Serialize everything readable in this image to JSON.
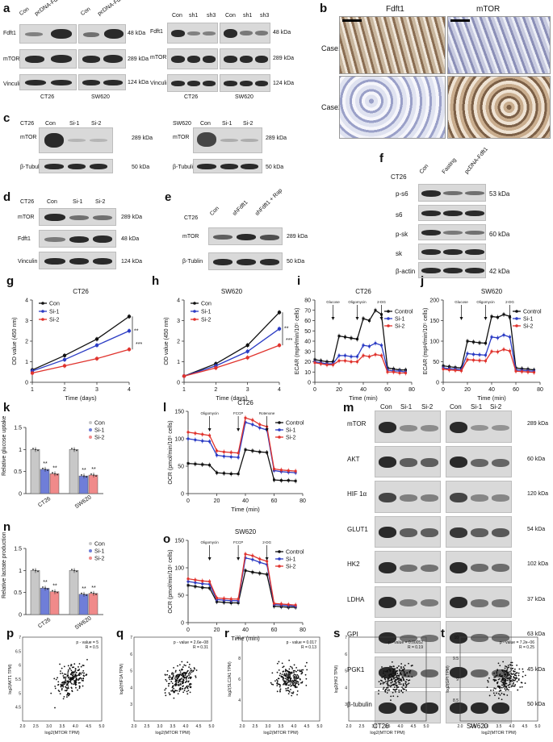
{
  "panels": {
    "a": {
      "letter": "a",
      "left": {
        "lanes": [
          "Con",
          "pcDNA-Fdft1",
          "Con",
          "pcDNA-Fdft1"
        ],
        "cells": [
          "CT26",
          "SW620"
        ],
        "rows": [
          "Fdft1",
          "mTOR",
          "Vinculin"
        ],
        "kda": [
          "48 kDa",
          "289 kDa",
          "124 kDa"
        ]
      },
      "right": {
        "lanes": [
          "Con",
          "sh1",
          "sh3",
          "Con",
          "sh1",
          "sh3"
        ],
        "cells": [
          "CT26",
          "SW620"
        ],
        "rows": [
          "Fdft1",
          "mTOR",
          "Vinculin"
        ],
        "kda": [
          "48 kDa",
          "289 kDa",
          "124 kDa"
        ]
      }
    },
    "b": {
      "letter": "b",
      "cols": [
        "Fdft1",
        "mTOR"
      ],
      "rows": [
        "Case1",
        "Case2"
      ]
    },
    "c": {
      "letter": "c",
      "left": {
        "cell": "CT26",
        "lanes": [
          "Con",
          "Si-1",
          "Si-2"
        ],
        "rows": [
          "mTOR",
          "β-Tubulin"
        ],
        "kda": [
          "289 kDa",
          "50 kDa"
        ]
      },
      "right": {
        "cell": "SW620",
        "lanes": [
          "Con",
          "Si-1",
          "Si-2"
        ],
        "rows": [
          "mTOR",
          "β-Tubulin"
        ],
        "kda": [
          "289 kDa",
          "50 kDa"
        ]
      }
    },
    "d": {
      "letter": "d",
      "cell": "CT26",
      "lanes": [
        "Con",
        "Si-1",
        "Si-2"
      ],
      "rows": [
        "mTOR",
        "Fdft1",
        "Vinculin"
      ],
      "kda": [
        "289 kDa",
        "48 kDa",
        "124 kDa"
      ]
    },
    "e": {
      "letter": "e",
      "cell": "CT26",
      "lanes": [
        "Con",
        "shFdft1",
        "shFdft1 + Rap"
      ],
      "rows": [
        "mTOR",
        "β-Tublin"
      ],
      "kda": [
        "289 kDa",
        "50 kDa"
      ]
    },
    "f": {
      "letter": "f",
      "cell": "CT26",
      "lanes": [
        "Con",
        "Fasting",
        "pcDNA-Fdft1"
      ],
      "rows": [
        "p-s6",
        "s6",
        "p-sk",
        "sk",
        "β-actin"
      ],
      "kda": [
        "53 kDa",
        "",
        "60 kDa",
        "",
        "42 kDa"
      ]
    },
    "m": {
      "letter": "m",
      "lanes": [
        "Con",
        "Si-1",
        "Si-2",
        "Con",
        "Si-1",
        "Si-2"
      ],
      "rows": [
        "mTOR",
        "AKT",
        "HIF 1α",
        "GLUT1",
        "HK2",
        "LDHA",
        "GPI",
        "PGK1",
        "β-tubulin"
      ],
      "kda": [
        "289 kDa",
        "60 kDa",
        "120 kDa",
        "54 kDa",
        "102 kDa",
        "37 kDa",
        "63 kDa",
        "45 kDa",
        "50 kDa"
      ],
      "cells": [
        "CT26",
        "SW620"
      ]
    },
    "k": {
      "letter": "k",
      "ylabel": "Relative glucose uptake"
    },
    "n": {
      "letter": "n",
      "ylabel": "Relative lactate production"
    },
    "scatter": {
      "xlabel": "log2(MTOR TPM)"
    }
  },
  "chart_data": [
    {
      "id": "g",
      "type": "line",
      "title": "CT26",
      "xlabel": "Time (days)",
      "ylabel": "OD value (450 nm)",
      "x": [
        1,
        2,
        3,
        4
      ],
      "xlim": [
        1,
        4
      ],
      "ylim": [
        0,
        4
      ],
      "yticks": [
        0,
        1,
        2,
        3,
        4
      ],
      "legend": "top-left",
      "series": [
        {
          "name": "Con",
          "color": "#111111",
          "values": [
            0.6,
            1.3,
            2.1,
            3.2
          ]
        },
        {
          "name": "Si-1",
          "color": "#2b3cc4",
          "values": [
            0.55,
            1.1,
            1.8,
            2.5
          ]
        },
        {
          "name": "Si-2",
          "color": "#e0332d",
          "values": [
            0.45,
            0.8,
            1.15,
            1.6
          ]
        }
      ],
      "annotations": [
        "**",
        "***"
      ]
    },
    {
      "id": "h",
      "type": "line",
      "title": "SW620",
      "xlabel": "Time (days)",
      "ylabel": "OD value (450 nm)",
      "x": [
        1,
        2,
        3,
        4
      ],
      "xlim": [
        1,
        4
      ],
      "ylim": [
        0,
        4
      ],
      "yticks": [
        0,
        1,
        2,
        3,
        4
      ],
      "legend": "top-left",
      "series": [
        {
          "name": "Con",
          "color": "#111111",
          "values": [
            0.3,
            0.9,
            1.8,
            3.4
          ]
        },
        {
          "name": "Si-1",
          "color": "#2b3cc4",
          "values": [
            0.3,
            0.8,
            1.5,
            2.6
          ]
        },
        {
          "name": "Si-2",
          "color": "#e0332d",
          "values": [
            0.3,
            0.7,
            1.2,
            1.8
          ]
        }
      ],
      "annotations": [
        "**",
        "***"
      ]
    },
    {
      "id": "i",
      "type": "line",
      "title": "CT26",
      "xlabel": "Time (min)",
      "ylabel": "ECAR (mpH/min/10⁵ cells)",
      "x": [
        0,
        5,
        10,
        15,
        20,
        25,
        30,
        35,
        40,
        45,
        50,
        55,
        60,
        65,
        70,
        75
      ],
      "xlim": [
        0,
        80
      ],
      "ylim": [
        0,
        80
      ],
      "yticks": [
        0,
        10,
        20,
        30,
        40,
        50,
        60,
        70,
        80
      ],
      "xticks": [
        0,
        20,
        40,
        60,
        80
      ],
      "legend": "right",
      "series": [
        {
          "name": "Control",
          "color": "#111111",
          "values": [
            22,
            21,
            20,
            20,
            45,
            44,
            43,
            42,
            62,
            60,
            70,
            66,
            14,
            13,
            12,
            12
          ]
        },
        {
          "name": "Si-1",
          "color": "#2b3cc4",
          "values": [
            20,
            19,
            18,
            18,
            26,
            26,
            25,
            25,
            36,
            35,
            38,
            36,
            12,
            11,
            11,
            10
          ]
        },
        {
          "name": "Si-2",
          "color": "#e0332d",
          "values": [
            19,
            18,
            17,
            17,
            21,
            21,
            20,
            20,
            26,
            25,
            27,
            26,
            10,
            10,
            9,
            9
          ]
        }
      ],
      "annotations": [
        "Glucose",
        "Oligomycin",
        "2-DG"
      ]
    },
    {
      "id": "j",
      "type": "line",
      "title": "SW620",
      "xlabel": "Time (min)",
      "ylabel": "ECAR (mpH/min/10⁵ cells)",
      "x": [
        0,
        5,
        10,
        15,
        20,
        25,
        30,
        35,
        40,
        45,
        50,
        55,
        60,
        65,
        70,
        75
      ],
      "xlim": [
        0,
        80
      ],
      "ylim": [
        0,
        200
      ],
      "yticks": [
        0,
        50,
        100,
        150,
        200
      ],
      "xticks": [
        0,
        20,
        40,
        60,
        80
      ],
      "legend": "right",
      "series": [
        {
          "name": "Control",
          "color": "#111111",
          "values": [
            40,
            38,
            36,
            35,
            100,
            98,
            96,
            95,
            160,
            158,
            165,
            160,
            35,
            33,
            32,
            30
          ]
        },
        {
          "name": "Si-1",
          "color": "#2b3cc4",
          "values": [
            35,
            33,
            32,
            31,
            70,
            68,
            67,
            66,
            110,
            108,
            115,
            110,
            30,
            29,
            28,
            27
          ]
        },
        {
          "name": "Si-2",
          "color": "#e0332d",
          "values": [
            32,
            30,
            29,
            28,
            55,
            54,
            53,
            52,
            75,
            74,
            80,
            76,
            27,
            26,
            25,
            24
          ]
        }
      ],
      "annotations": [
        "Glucose",
        "Oligomycin",
        "2-DG"
      ]
    },
    {
      "id": "l",
      "type": "line",
      "title": "CT26",
      "xlabel": "Time (min)",
      "ylabel": "OCR (pmol/min/10⁵ cells)",
      "x": [
        0,
        5,
        10,
        15,
        20,
        25,
        30,
        35,
        40,
        45,
        50,
        55,
        60,
        65,
        70,
        75
      ],
      "xlim": [
        0,
        80
      ],
      "ylim": [
        0,
        150
      ],
      "yticks": [
        0,
        50,
        100,
        150
      ],
      "xticks": [
        0,
        20,
        40,
        60,
        80
      ],
      "legend": "right",
      "series": [
        {
          "name": "Control",
          "color": "#111111",
          "values": [
            55,
            54,
            53,
            52,
            38,
            37,
            36,
            36,
            80,
            78,
            76,
            75,
            25,
            24,
            24,
            23
          ]
        },
        {
          "name": "Si-1",
          "color": "#2b3cc4",
          "values": [
            100,
            98,
            96,
            95,
            70,
            68,
            67,
            66,
            130,
            126,
            120,
            116,
            42,
            40,
            39,
            38
          ]
        },
        {
          "name": "Si-2",
          "color": "#e0332d",
          "values": [
            112,
            110,
            108,
            106,
            78,
            76,
            75,
            74,
            138,
            134,
            126,
            122,
            45,
            43,
            42,
            41
          ]
        }
      ],
      "annotations": [
        "Oligomycin",
        "FCCP",
        "Rotenone"
      ]
    },
    {
      "id": "o",
      "type": "line",
      "title": "SW620",
      "xlabel": "Time (min)",
      "ylabel": "OCR (pmol/min/10⁵ cells)",
      "x": [
        0,
        5,
        10,
        15,
        20,
        25,
        30,
        35,
        40,
        45,
        50,
        55,
        60,
        65,
        70,
        75
      ],
      "xlim": [
        0,
        80
      ],
      "ylim": [
        0,
        150
      ],
      "yticks": [
        0,
        50,
        100,
        150
      ],
      "xticks": [
        0,
        20,
        40,
        60,
        80
      ],
      "legend": "right",
      "series": [
        {
          "name": "Control",
          "color": "#111111",
          "values": [
            68,
            66,
            64,
            63,
            38,
            37,
            36,
            36,
            95,
            92,
            90,
            88,
            30,
            29,
            28,
            28
          ]
        },
        {
          "name": "Si-1",
          "color": "#2b3cc4",
          "values": [
            75,
            73,
            71,
            70,
            42,
            41,
            40,
            40,
            118,
            115,
            110,
            106,
            33,
            32,
            31,
            30
          ]
        },
        {
          "name": "Si-2",
          "color": "#e0332d",
          "values": [
            80,
            78,
            76,
            75,
            45,
            44,
            43,
            43,
            125,
            122,
            116,
            112,
            35,
            34,
            33,
            32
          ]
        }
      ],
      "annotations": [
        "Oligomycin",
        "FCCP",
        "2-DG"
      ]
    },
    {
      "id": "k",
      "type": "bar",
      "categories": [
        "CT26",
        "SW620"
      ],
      "ylabel": "Relative glucose uptake",
      "ylim": [
        0,
        1.5
      ],
      "yticks": [
        0,
        0.5,
        1,
        1.5
      ],
      "legend": "top-right",
      "series": [
        {
          "name": "Con",
          "color": "#c8c8c8",
          "values": [
            1.0,
            1.0
          ]
        },
        {
          "name": "Si-1",
          "color": "#6f7ed8",
          "values": [
            0.55,
            0.4
          ]
        },
        {
          "name": "Si-2",
          "color": "#f08a8a",
          "values": [
            0.45,
            0.42
          ]
        }
      ],
      "annotations": [
        "**",
        "**",
        "**",
        "**"
      ]
    },
    {
      "id": "n",
      "type": "bar",
      "categories": [
        "CT26",
        "SW620"
      ],
      "ylabel": "Relative lactate production",
      "ylim": [
        0,
        1.5
      ],
      "yticks": [
        0,
        0.5,
        1,
        1.5
      ],
      "legend": "top-right",
      "series": [
        {
          "name": "Con",
          "color": "#c8c8c8",
          "values": [
            1.0,
            1.0
          ]
        },
        {
          "name": "Si-1",
          "color": "#6f7ed8",
          "values": [
            0.6,
            0.46
          ]
        },
        {
          "name": "Si-2",
          "color": "#f08a8a",
          "values": [
            0.52,
            0.48
          ]
        }
      ],
      "annotations": [
        "**",
        "**",
        "**",
        "**"
      ]
    },
    {
      "id": "p",
      "type": "scatter",
      "xlabel": "log2(MTOR TPM)",
      "ylabel": "log2(AKT1 TPM)",
      "xlim": [
        2,
        5
      ],
      "ylim": [
        4,
        7
      ],
      "stat": [
        "p - value = 5",
        "R = 0.5"
      ],
      "seed": 11,
      "n": 220,
      "slope": 0.5
    },
    {
      "id": "q",
      "type": "scatter",
      "xlabel": "log2(MTOR TPM)",
      "ylabel": "log2(HIF1A TPM)",
      "xlim": [
        2,
        5
      ],
      "ylim": [
        2,
        7
      ],
      "stat": [
        "p - value = 2.6e−08",
        "R = 0.31"
      ],
      "seed": 23,
      "n": 220,
      "slope": 0.31
    },
    {
      "id": "r",
      "type": "scatter",
      "xlabel": "log2(MTOR TPM)",
      "ylabel": "log2(SLC2A1 TPM)",
      "xlim": [
        2,
        5
      ],
      "ylim": [
        2,
        10
      ],
      "stat": [
        "p - value = 0.017",
        "R = 0.13"
      ],
      "seed": 37,
      "n": 220,
      "slope": 0.13
    },
    {
      "id": "s",
      "type": "scatter",
      "xlabel": "log2(MTOR TPM)",
      "ylabel": "log2(HK2 TPM)",
      "xlim": [
        2,
        5
      ],
      "ylim": [
        2,
        7
      ],
      "stat": [
        "p - value = 0.00052",
        "R = 0.19"
      ],
      "seed": 51,
      "n": 220,
      "slope": 0.19
    },
    {
      "id": "t",
      "type": "scatter",
      "xlabel": "log2(MTOR TPM)",
      "ylabel": "log2(GPI TPM)",
      "xlim": [
        2,
        5
      ],
      "ylim": [
        8,
        10
      ],
      "stat": [
        "p - value = 7.2e−06",
        "R = 0.25"
      ],
      "seed": 67,
      "n": 220,
      "slope": 0.25
    }
  ],
  "colors": {
    "con": "#111111",
    "si1": "#2b3cc4",
    "si2": "#e0332d"
  }
}
